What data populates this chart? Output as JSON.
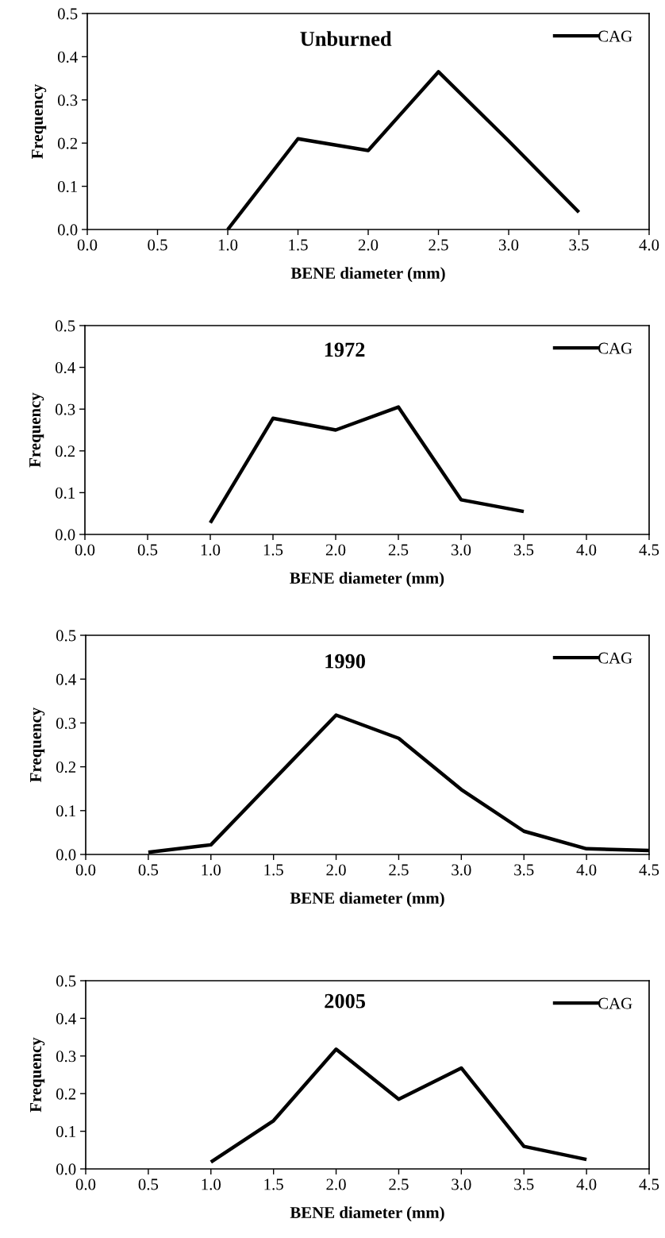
{
  "chart_data": [
    {
      "type": "line",
      "title": "Unburned",
      "xlabel": "BENE diameter (mm)",
      "ylabel": "Frequency",
      "x": [
        1.0,
        1.5,
        2.0,
        2.5,
        3.0,
        3.5
      ],
      "series": [
        {
          "name": "CAG",
          "color": "#000000",
          "values": [
            0.0,
            0.21,
            0.183,
            0.365,
            0.205,
            0.04
          ]
        }
      ],
      "xlim": [
        0,
        4
      ],
      "xticks": [
        {
          "value": 0,
          "label": "0.0"
        },
        {
          "value": 0.5,
          "label": "0.5"
        },
        {
          "value": 1,
          "label": "1.0"
        },
        {
          "value": 1.5,
          "label": "1.5"
        },
        {
          "value": 2,
          "label": "2.0"
        },
        {
          "value": 2.5,
          "label": "2.5"
        },
        {
          "value": 3,
          "label": "3.0"
        },
        {
          "value": 3.5,
          "label": "3.5"
        },
        {
          "value": 4,
          "label": "4.0"
        }
      ],
      "ylim": [
        0,
        0.5
      ],
      "yticks": [
        {
          "value": 0,
          "label": "0.0"
        },
        {
          "value": 0.1,
          "label": "0.1"
        },
        {
          "value": 0.2,
          "label": "0.2"
        },
        {
          "value": 0.3,
          "label": "0.3"
        },
        {
          "value": 0.4,
          "label": "0.4"
        },
        {
          "value": 0.5,
          "label": "0.5"
        }
      ],
      "legend": "top right",
      "grid": false,
      "marker": "none",
      "line_style": "solid"
    },
    {
      "type": "line",
      "title": "1972",
      "xlabel": "BENE diameter (mm)",
      "ylabel": "Frequency",
      "x": [
        1.0,
        1.5,
        2.0,
        2.5,
        3.0,
        3.5
      ],
      "series": [
        {
          "name": "CAG",
          "color": "#000000",
          "values": [
            0.028,
            0.278,
            0.25,
            0.305,
            0.083,
            0.055
          ]
        }
      ],
      "xlim": [
        0,
        4.5
      ],
      "xticks": [
        {
          "value": 0,
          "label": "0.0"
        },
        {
          "value": 0.5,
          "label": "0.5"
        },
        {
          "value": 1,
          "label": "1.0"
        },
        {
          "value": 1.5,
          "label": "1.5"
        },
        {
          "value": 2,
          "label": "2.0"
        },
        {
          "value": 2.5,
          "label": "2.5"
        },
        {
          "value": 3,
          "label": "3.0"
        },
        {
          "value": 3.5,
          "label": "3.5"
        },
        {
          "value": 4,
          "label": "4.0"
        },
        {
          "value": 4.5,
          "label": "4.5"
        }
      ],
      "ylim": [
        0,
        0.5
      ],
      "yticks": [
        {
          "value": 0,
          "label": "0.0"
        },
        {
          "value": 0.1,
          "label": "0.1"
        },
        {
          "value": 0.2,
          "label": "0.2"
        },
        {
          "value": 0.3,
          "label": "0.3"
        },
        {
          "value": 0.4,
          "label": "0.4"
        },
        {
          "value": 0.5,
          "label": "0.5"
        }
      ],
      "legend": "top right",
      "grid": false,
      "marker": "none",
      "line_style": "solid"
    },
    {
      "type": "line",
      "title": "1990",
      "xlabel": "BENE diameter (mm)",
      "ylabel": "Frequency",
      "x": [
        0.5,
        1.0,
        1.5,
        2.0,
        2.5,
        3.0,
        3.5,
        4.0,
        4.5
      ],
      "series": [
        {
          "name": "CAG",
          "color": "#000000",
          "values": [
            0.005,
            0.022,
            0.17,
            0.318,
            0.265,
            0.148,
            0.053,
            0.013,
            0.009
          ]
        }
      ],
      "xlim": [
        0,
        4.5
      ],
      "xticks": [
        {
          "value": 0,
          "label": "0.0"
        },
        {
          "value": 0.5,
          "label": "0.5"
        },
        {
          "value": 1,
          "label": "1.0"
        },
        {
          "value": 1.5,
          "label": "1.5"
        },
        {
          "value": 2,
          "label": "2.0"
        },
        {
          "value": 2.5,
          "label": "2.5"
        },
        {
          "value": 3,
          "label": "3.0"
        },
        {
          "value": 3.5,
          "label": "3.5"
        },
        {
          "value": 4,
          "label": "4.0"
        },
        {
          "value": 4.5,
          "label": "4.5"
        }
      ],
      "ylim": [
        0,
        0.5
      ],
      "yticks": [
        {
          "value": 0,
          "label": "0.0"
        },
        {
          "value": 0.1,
          "label": "0.1"
        },
        {
          "value": 0.2,
          "label": "0.2"
        },
        {
          "value": 0.3,
          "label": "0.3"
        },
        {
          "value": 0.4,
          "label": "0.4"
        },
        {
          "value": 0.5,
          "label": "0.5"
        }
      ],
      "legend": "top right",
      "grid": false,
      "marker": "none",
      "line_style": "solid"
    },
    {
      "type": "line",
      "title": "2005",
      "xlabel": "BENE diameter (mm)",
      "ylabel": "Frequency",
      "x": [
        1.0,
        1.5,
        2.0,
        2.5,
        3.0,
        3.5,
        4.0
      ],
      "series": [
        {
          "name": "CAG",
          "color": "#000000",
          "values": [
            0.018,
            0.128,
            0.318,
            0.185,
            0.268,
            0.06,
            0.025
          ]
        }
      ],
      "xlim": [
        0,
        4.5
      ],
      "xticks": [
        {
          "value": 0,
          "label": "0.0"
        },
        {
          "value": 0.5,
          "label": "0.5"
        },
        {
          "value": 1,
          "label": "1.0"
        },
        {
          "value": 1.5,
          "label": "1.5"
        },
        {
          "value": 2,
          "label": "2.0"
        },
        {
          "value": 2.5,
          "label": "2.5"
        },
        {
          "value": 3,
          "label": "3.0"
        },
        {
          "value": 3.5,
          "label": "3.5"
        },
        {
          "value": 4,
          "label": "4.0"
        },
        {
          "value": 4.5,
          "label": "4.5"
        }
      ],
      "ylim": [
        0,
        0.5
      ],
      "yticks": [
        {
          "value": 0,
          "label": "0.0"
        },
        {
          "value": 0.1,
          "label": "0.1"
        },
        {
          "value": 0.2,
          "label": "0.2"
        },
        {
          "value": 0.3,
          "label": "0.3"
        },
        {
          "value": 0.4,
          "label": "0.4"
        },
        {
          "value": 0.5,
          "label": "0.5"
        }
      ],
      "legend": "top right",
      "grid": false,
      "marker": "none",
      "line_style": "solid"
    }
  ]
}
